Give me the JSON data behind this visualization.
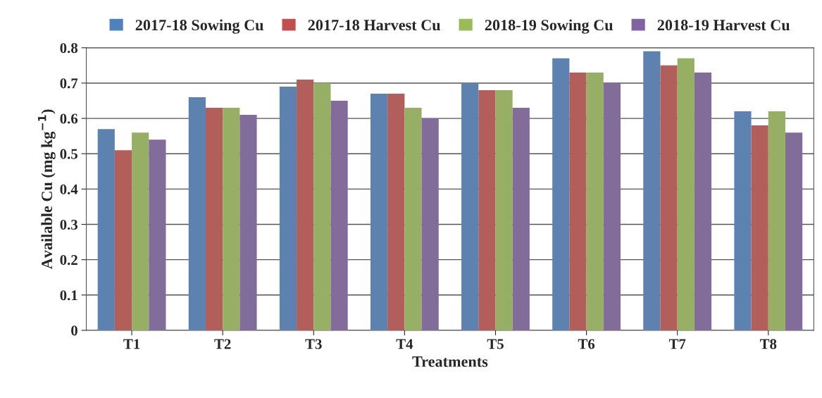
{
  "chart_data": {
    "type": "bar",
    "xlabel": "Treatments",
    "ylabel": "Available Cu (mg kg$^{−1}$)",
    "categories": [
      "T1",
      "T2",
      "T3",
      "T4",
      "T5",
      "T6",
      "T7",
      "T8"
    ],
    "series": [
      {
        "name": "2017-18 Sowing Cu",
        "color": "#4f81bd",
        "values": [
          0.57,
          0.66,
          0.69,
          0.67,
          0.7,
          0.77,
          0.79,
          0.62
        ]
      },
      {
        "name": "2017-18 Harvest Cu",
        "color": "#c0504d",
        "values": [
          0.51,
          0.63,
          0.71,
          0.67,
          0.68,
          0.73,
          0.75,
          0.58
        ]
      },
      {
        "name": "2018-19 Sowing Cu",
        "color": "#9bbb59",
        "values": [
          0.56,
          0.63,
          0.7,
          0.63,
          0.68,
          0.73,
          0.77,
          0.62
        ]
      },
      {
        "name": "2018-19 Harvest Cu",
        "color": "#8064a2",
        "values": [
          0.54,
          0.61,
          0.65,
          0.6,
          0.63,
          0.7,
          0.73,
          0.56
        ]
      }
    ],
    "ylim": [
      0,
      0.8
    ],
    "yticks": [
      0,
      0.1,
      0.2,
      0.3,
      0.4,
      0.5,
      0.6,
      0.7,
      0.8
    ],
    "grid": "y",
    "legend": "top"
  }
}
